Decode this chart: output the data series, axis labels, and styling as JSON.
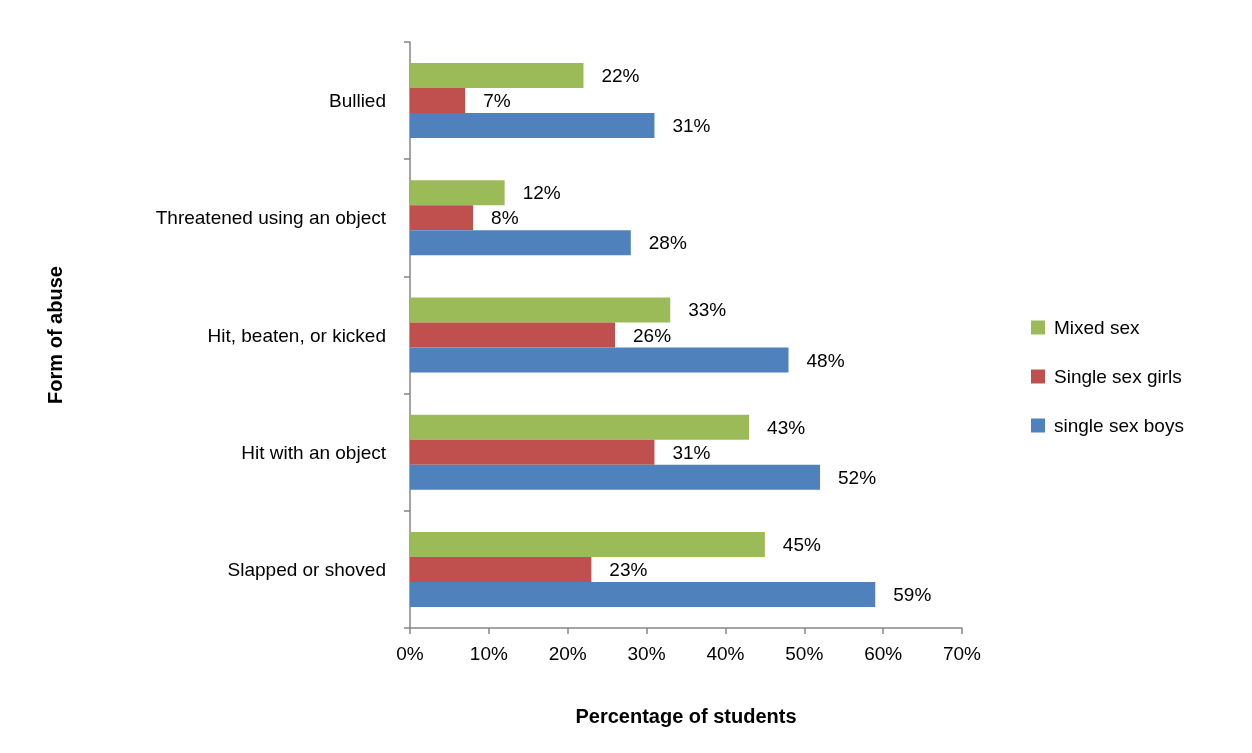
{
  "chart_data": {
    "type": "bar",
    "orientation": "horizontal",
    "xlabel": "Percentage of students",
    "ylabel": "Form of abuse",
    "categories": [
      "Bullied",
      "Threatened using an object",
      "Hit, beaten, or kicked",
      "Hit with an object",
      "Slapped or shoved"
    ],
    "series": [
      {
        "name": "Mixed sex",
        "color": "#9bbb59",
        "values": [
          22,
          12,
          33,
          43,
          45
        ],
        "value_labels": [
          "22%",
          "12%",
          "33%",
          "43%",
          "45%"
        ]
      },
      {
        "name": "Single sex girls",
        "color": "#c0504d",
        "values": [
          7,
          8,
          26,
          31,
          23
        ],
        "value_labels": [
          "7%",
          "8%",
          "26%",
          "31%",
          "23%"
        ]
      },
      {
        "name": "single sex boys",
        "color": "#4f81bd",
        "values": [
          31,
          28,
          48,
          52,
          59
        ],
        "value_labels": [
          "31%",
          "28%",
          "48%",
          "52%",
          "59%"
        ]
      }
    ],
    "xlim": [
      0,
      70
    ],
    "xticks": [
      {
        "value": 0,
        "label": "0%"
      },
      {
        "value": 10,
        "label": "10%"
      },
      {
        "value": 20,
        "label": "20%"
      },
      {
        "value": 30,
        "label": "30%"
      },
      {
        "value": 40,
        "label": "40%"
      },
      {
        "value": 50,
        "label": "50%"
      },
      {
        "value": 60,
        "label": "60%"
      },
      {
        "value": 70,
        "label": "70%"
      }
    ],
    "grid": false,
    "legend": "right"
  }
}
